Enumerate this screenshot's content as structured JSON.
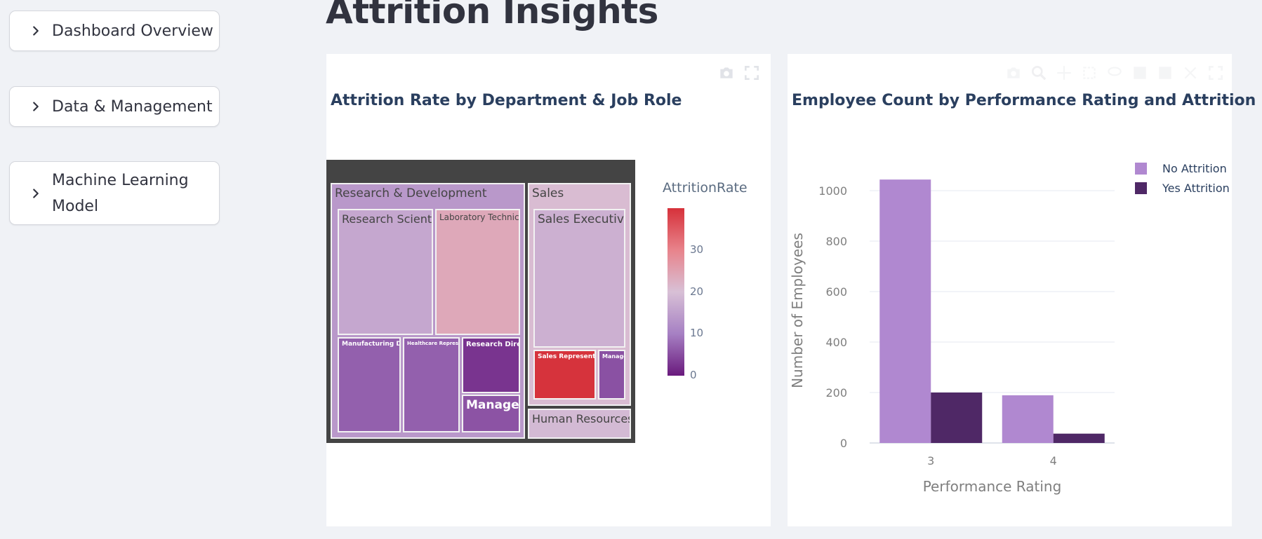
{
  "sidebar": {
    "items": [
      {
        "label": "Dashboard Overview",
        "lines": [
          "Dashboard Overview"
        ]
      },
      {
        "label": "Data & Management",
        "lines": [
          "Data & Management"
        ]
      },
      {
        "label": "Machine Learning Model",
        "lines": [
          "Machine Learning",
          "Model"
        ]
      }
    ]
  },
  "page": {
    "title": "Attrition Insights"
  },
  "icons": {
    "sidebar_expand": "chevron-right-icon",
    "modebar_left": [
      "camera-icon",
      "fullscreen-icon"
    ],
    "modebar_right": [
      "camera-icon",
      "zoom-icon",
      "pan-icon",
      "box-select-icon",
      "lasso-icon",
      "zoom-in-icon",
      "zoom-out-icon",
      "autoscale-icon",
      "fullscreen-icon"
    ]
  },
  "chart_data": [
    {
      "type": "treemap",
      "title": "Attrition Rate by Department & Job Role",
      "colorbar": {
        "title": "AttritionRate",
        "ticks": [
          0,
          10,
          20,
          30
        ],
        "range": [
          0,
          40
        ]
      },
      "colorscale": [
        "#6a1a7d",
        "#a680c3",
        "#d8c0d6",
        "#e8838b",
        "#d6313a"
      ],
      "departments": [
        {
          "name": "Research & Development",
          "rate": 13.8,
          "roles": [
            {
              "name": "Research Scientist",
              "rate": 16.1
            },
            {
              "name": "Laboratory Technician",
              "rate": 23.9
            },
            {
              "name": "Manufacturing Director",
              "rate": 6.9
            },
            {
              "name": "Healthcare Representative",
              "rate": 6.9
            },
            {
              "name": "Research Director",
              "rate": 2.5
            },
            {
              "name": "Manager",
              "rate": 5.6
            }
          ]
        },
        {
          "name": "Sales",
          "rate": 20.6,
          "roles": [
            {
              "name": "Sales Executive",
              "rate": 17.5
            },
            {
              "name": "Sales Representative",
              "rate": 39.8
            },
            {
              "name": "Manager",
              "rate": 5.4
            }
          ]
        },
        {
          "name": "Human Resources",
          "rate": 19.0,
          "roles": []
        }
      ]
    },
    {
      "type": "bar",
      "title": "Employee Count by Performance Rating and Attrition",
      "xlabel": "Performance Rating",
      "ylabel": "Number of Employees",
      "categories": [
        "3",
        "4"
      ],
      "yticks": [
        0,
        200,
        400,
        600,
        800,
        1000
      ],
      "ylim": [
        0,
        1050
      ],
      "legend_position": "top-right",
      "series": [
        {
          "name": "No Attrition",
          "values": [
            1044,
            189
          ],
          "color": "#b088d0"
        },
        {
          "name": "Yes Attrition",
          "values": [
            200,
            37
          ],
          "color": "#4f2866"
        }
      ]
    }
  ]
}
